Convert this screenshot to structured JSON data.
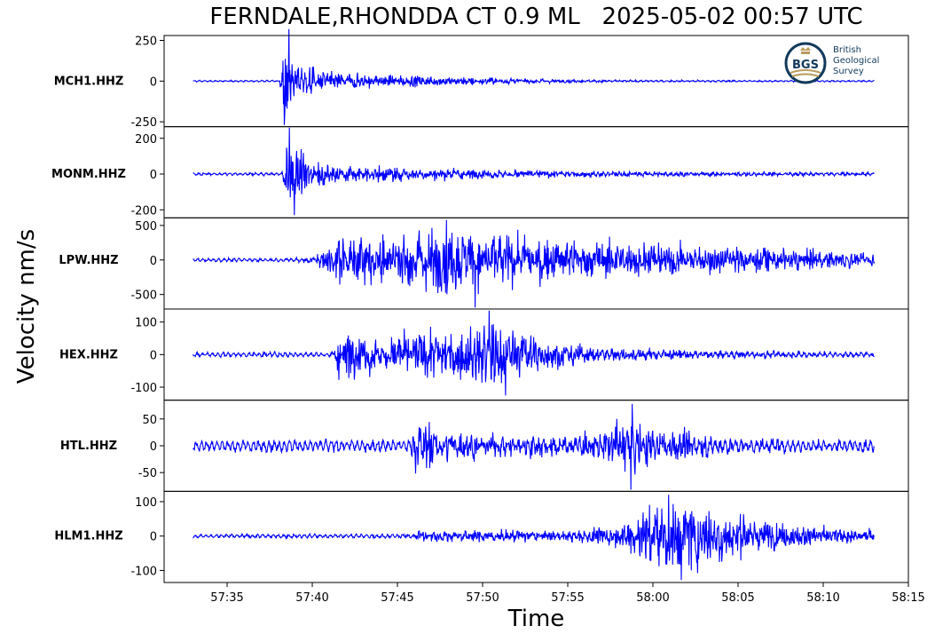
{
  "title": "FERNDALE,RHONDDA CT 0.9 ML   2025-05-02 00:57 UTC",
  "xlabel": "Time",
  "ylabel": "Velocity nm/s",
  "logo": {
    "mark": "BGS",
    "lines": [
      "British",
      "Geological",
      "Survey"
    ],
    "icon": "bgs-crest-icon"
  },
  "colors": {
    "trace": "#0000ff",
    "axes": "#000000",
    "logo_ring": "#123a5c",
    "logo_gold": "#b89a5a"
  },
  "chart_data": {
    "type": "line",
    "xlim": [
      "57:31.3",
      "58:15"
    ],
    "x_ticks": [
      "57:35",
      "57:40",
      "57:45",
      "57:50",
      "57:55",
      "58:00",
      "58:05",
      "58:10",
      "58:15"
    ],
    "trace_start": "57:33",
    "trace_end": "58:13",
    "series": [
      {
        "name": "MCH1.HHZ",
        "ylim": [
          -280,
          280
        ],
        "ticks": [
          250,
          0,
          -250
        ],
        "tick_labels": [
          "250",
          "0",
          "-250"
        ],
        "noise": 5,
        "peak_min": -270,
        "peak_max": 320,
        "envelope": [
          [
            "57:33",
            5
          ],
          [
            "57:38.1",
            6
          ],
          [
            "57:38.3",
            260
          ],
          [
            "57:39",
            110
          ],
          [
            "57:41",
            55
          ],
          [
            "57:45",
            35
          ],
          [
            "57:50",
            25
          ],
          [
            "57:55",
            12
          ],
          [
            "58:00",
            8
          ],
          [
            "58:13",
            6
          ]
        ]
      },
      {
        "name": "MONM.HHZ",
        "ylim": [
          -245,
          265
        ],
        "ticks": [
          200,
          0,
          -200
        ],
        "tick_labels": [
          "200",
          "0",
          "-200"
        ],
        "noise": 8,
        "peak_min": -230,
        "peak_max": 260,
        "envelope": [
          [
            "57:33",
            8
          ],
          [
            "57:38.2",
            10
          ],
          [
            "57:38.5",
            200
          ],
          [
            "57:39.5",
            90
          ],
          [
            "57:42",
            55
          ],
          [
            "57:46",
            40
          ],
          [
            "57:50",
            30
          ],
          [
            "57:55",
            22
          ],
          [
            "58:00",
            18
          ],
          [
            "58:13",
            12
          ]
        ]
      },
      {
        "name": "LPW.HHZ",
        "ylim": [
          -710,
          610
        ],
        "ticks": [
          500,
          0,
          -500
        ],
        "tick_labels": [
          "500",
          "0",
          "-500"
        ],
        "noise": 30,
        "peak_min": -690,
        "peak_max": 580,
        "envelope": [
          [
            "57:33",
            25
          ],
          [
            "57:39",
            30
          ],
          [
            "57:40.5",
            120
          ],
          [
            "57:41.5",
            320
          ],
          [
            "57:44",
            380
          ],
          [
            "57:48",
            480
          ],
          [
            "57:52",
            340
          ],
          [
            "57:55",
            290
          ],
          [
            "58:00",
            250
          ],
          [
            "58:05",
            200
          ],
          [
            "58:10",
            140
          ],
          [
            "58:13",
            110
          ]
        ]
      },
      {
        "name": "HEX.HHZ",
        "ylim": [
          -140,
          140
        ],
        "ticks": [
          100,
          0,
          -100
        ],
        "tick_labels": [
          "100",
          "0",
          "-100"
        ],
        "noise": 8,
        "peak_min": -125,
        "peak_max": 135,
        "envelope": [
          [
            "57:33",
            8
          ],
          [
            "57:41.2",
            9
          ],
          [
            "57:41.5",
            70
          ],
          [
            "57:45",
            60
          ],
          [
            "57:49",
            75
          ],
          [
            "57:50.3",
            110
          ],
          [
            "57:52",
            80
          ],
          [
            "57:54",
            45
          ],
          [
            "57:57",
            25
          ],
          [
            "58:05",
            15
          ],
          [
            "58:13",
            10
          ]
        ]
      },
      {
        "name": "HTL.HHZ",
        "ylim": [
          -85,
          85
        ],
        "ticks": [
          50,
          0,
          -50
        ],
        "tick_labels": [
          "50",
          "0",
          "-50"
        ],
        "noise": 12,
        "peak_min": -82,
        "peak_max": 78,
        "envelope": [
          [
            "57:33",
            12
          ],
          [
            "57:45.8",
            14
          ],
          [
            "57:46.1",
            70
          ],
          [
            "57:47.5",
            35
          ],
          [
            "57:52",
            25
          ],
          [
            "57:57",
            30
          ],
          [
            "57:58.8",
            65
          ],
          [
            "58:00",
            40
          ],
          [
            "58:05",
            20
          ],
          [
            "58:13",
            14
          ]
        ]
      },
      {
        "name": "HLM1.HHZ",
        "ylim": [
          -135,
          130
        ],
        "ticks": [
          100,
          0,
          -100
        ],
        "tick_labels": [
          "100",
          "0",
          "-100"
        ],
        "noise": 6,
        "peak_min": -128,
        "peak_max": 120,
        "envelope": [
          [
            "57:33",
            6
          ],
          [
            "57:46",
            8
          ],
          [
            "57:46.3",
            22
          ],
          [
            "57:55",
            18
          ],
          [
            "57:58",
            35
          ],
          [
            "58:00",
            95
          ],
          [
            "58:01.5",
            110
          ],
          [
            "58:04",
            70
          ],
          [
            "58:08",
            35
          ],
          [
            "58:13",
            20
          ]
        ]
      }
    ]
  }
}
